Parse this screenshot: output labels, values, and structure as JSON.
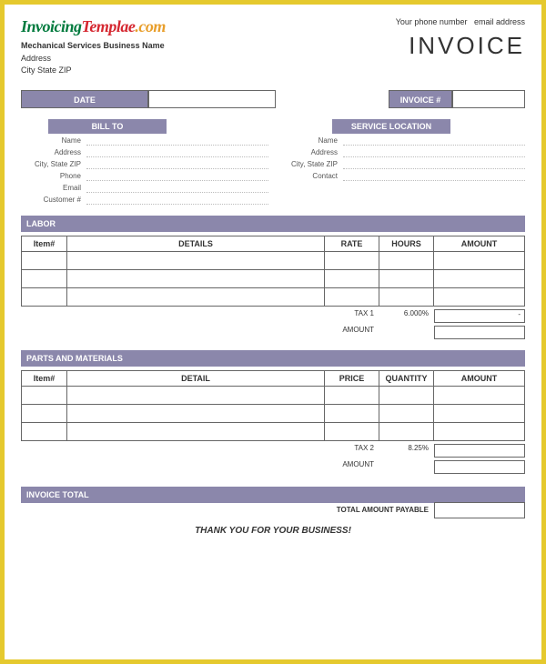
{
  "logo": {
    "word1": "Invoicing",
    "word2": "Templae",
    "word3": ".com",
    "color1": "#007a3d",
    "color2": "#d52730",
    "color3": "#e89e2b"
  },
  "top_right": {
    "phone": "Your phone number",
    "email": "email address"
  },
  "title": "INVOICE",
  "business": {
    "name": "Mechanical Services Business Name",
    "address": "Address",
    "csz": "City State ZIP"
  },
  "row_labels": {
    "date": "DATE",
    "invoice_num": "INVOICE #"
  },
  "bill_to": {
    "header": "BILL TO",
    "fields": [
      "Name",
      "Address",
      "City, State ZIP",
      "Phone",
      "Email",
      "Customer #"
    ]
  },
  "service_loc": {
    "header": "SERVICE LOCATION",
    "fields": [
      "Name",
      "Address",
      "City, State ZIP",
      "Contact"
    ]
  },
  "labor": {
    "header": "LABOR",
    "columns": [
      "Item#",
      "DETAILS",
      "RATE",
      "HOURS",
      "AMOUNT"
    ],
    "rows": 3,
    "tax_label": "TAX 1",
    "tax_value": "6.000%",
    "tax_amount": "-",
    "amount_label": "AMOUNT"
  },
  "parts": {
    "header": "PARTS AND MATERIALS",
    "columns": [
      "Item#",
      "DETAIL",
      "PRICE",
      "QUANTITY",
      "AMOUNT"
    ],
    "rows": 3,
    "tax_label": "TAX 2",
    "tax_value": "8.25%",
    "amount_label": "AMOUNT"
  },
  "total": {
    "header": "INVOICE TOTAL",
    "payable_label": "TOTAL AMOUNT PAYABLE"
  },
  "thank_you": "THANK YOU FOR YOUR BUSINESS!",
  "colors": {
    "band_bg": "#8b87ab",
    "border": "#666666",
    "page_border": "#e5c92e"
  }
}
